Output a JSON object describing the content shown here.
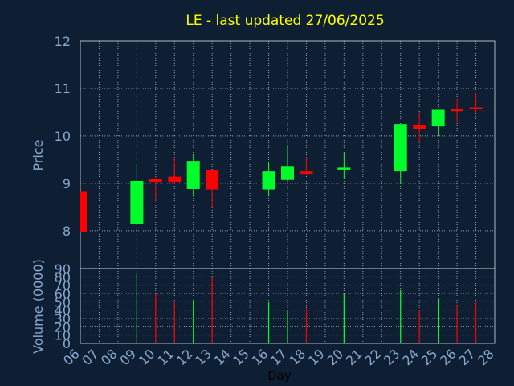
{
  "chart_data": {
    "type": "candlestick",
    "title": "LE - last updated 27/06/2025",
    "xlabel": "Day",
    "price_panel": {
      "ylabel": "Price",
      "ylim": [
        7.2,
        12
      ],
      "yticks": [
        "8",
        "9",
        "10",
        "11",
        "12"
      ],
      "grid": true
    },
    "volume_panel": {
      "ylabel": "Volume (0000)",
      "ylim": [
        0,
        90
      ],
      "yticks": [
        "0",
        "10",
        "20",
        "30",
        "40",
        "50",
        "60",
        "70",
        "80",
        "90"
      ],
      "grid": true
    },
    "x_ticks": [
      "06",
      "07",
      "08",
      "09",
      "10",
      "11",
      "12",
      "13",
      "14",
      "15",
      "16",
      "17",
      "18",
      "19",
      "20",
      "21",
      "22",
      "23",
      "24",
      "25",
      "26",
      "27",
      "28"
    ],
    "x_range": [
      6,
      28
    ],
    "candles": [
      {
        "day": 6,
        "open": 8.82,
        "high": 8.82,
        "low": 7.98,
        "close": 7.98,
        "volume": 0
      },
      {
        "day": 9,
        "open": 8.15,
        "high": 9.4,
        "low": 8.12,
        "close": 9.05,
        "volume": 85
      },
      {
        "day": 10,
        "open": 9.1,
        "high": 9.12,
        "low": 8.62,
        "close": 9.03,
        "volume": 60
      },
      {
        "day": 11,
        "open": 9.14,
        "high": 9.55,
        "low": 8.98,
        "close": 9.03,
        "volume": 50
      },
      {
        "day": 12,
        "open": 8.88,
        "high": 9.62,
        "low": 8.72,
        "close": 9.47,
        "volume": 52
      },
      {
        "day": 13,
        "open": 9.27,
        "high": 9.27,
        "low": 8.5,
        "close": 8.87,
        "volume": 80
      },
      {
        "day": 16,
        "open": 8.87,
        "high": 9.45,
        "low": 8.72,
        "close": 9.25,
        "volume": 50
      },
      {
        "day": 17,
        "open": 9.07,
        "high": 9.78,
        "low": 9.05,
        "close": 9.35,
        "volume": 40
      },
      {
        "day": 18,
        "open": 9.25,
        "high": 9.55,
        "low": 9.17,
        "close": 9.2,
        "volume": 42
      },
      {
        "day": 20,
        "open": 9.32,
        "high": 9.65,
        "low": 9.1,
        "close": 9.33,
        "volume": 60
      },
      {
        "day": 23,
        "open": 9.25,
        "high": 10.25,
        "low": 9.0,
        "close": 10.25,
        "volume": 64
      },
      {
        "day": 24,
        "open": 10.22,
        "high": 10.5,
        "low": 9.9,
        "close": 10.15,
        "volume": 40
      },
      {
        "day": 25,
        "open": 10.2,
        "high": 10.55,
        "low": 10.0,
        "close": 10.55,
        "volume": 54
      },
      {
        "day": 26,
        "open": 10.57,
        "high": 10.78,
        "low": 10.28,
        "close": 10.52,
        "volume": 46
      },
      {
        "day": 27,
        "open": 10.6,
        "high": 10.9,
        "low": 10.5,
        "close": 10.57,
        "volume": 50
      }
    ],
    "colors": {
      "up": "#00ff2a",
      "down": "#ff0000",
      "background": "#0f1f33",
      "grid": "#c8d2dc",
      "axis_text": "#87a9cf",
      "title": "#ffff00"
    }
  }
}
